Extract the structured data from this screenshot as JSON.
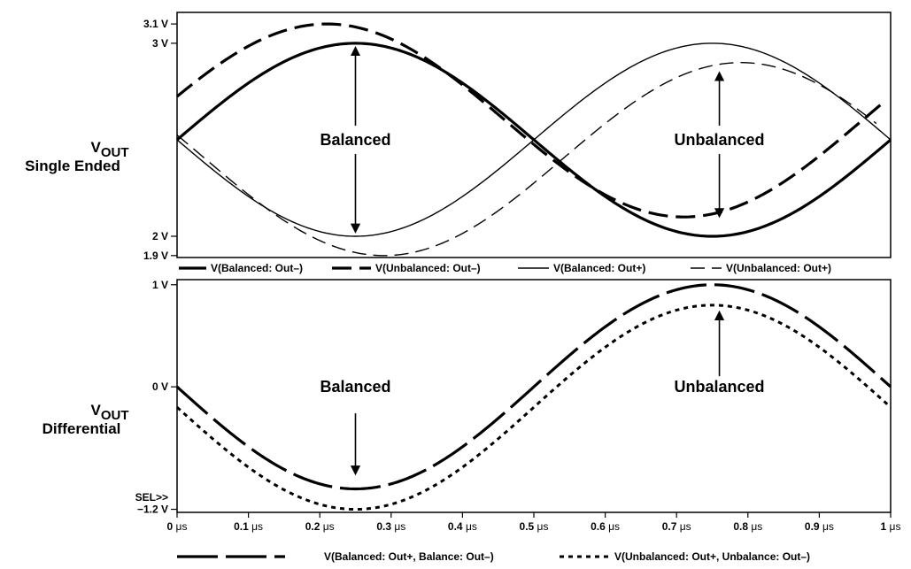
{
  "chart_data": [
    {
      "type": "line",
      "side_label_main": "V",
      "side_label_sub": "OUT",
      "side_label_line2": "Single Ended",
      "y_ticks": [
        {
          "label": "3.1 V",
          "value": 3.1
        },
        {
          "label": "3 V",
          "value": 3.0
        },
        {
          "label": "2 V",
          "value": 2.0
        },
        {
          "label": "1.9 V",
          "value": 1.9
        }
      ],
      "ylim": [
        1.89,
        3.16
      ],
      "xlim": [
        0,
        1
      ],
      "period_us": 1.0,
      "series": [
        {
          "name": "V(Balanced: Out–)",
          "style": "thick-solid",
          "offset": 2.5,
          "amplitude": 0.5,
          "phase_us": 0.0,
          "x_end": 1.0
        },
        {
          "name": "V(Unbalanced: Out–)",
          "style": "thick-dash",
          "offset": 2.6,
          "amplitude": 0.5,
          "phase_us": -0.04,
          "x_end": 0.99
        },
        {
          "name": "V(Balanced: Out+)",
          "style": "thin-solid",
          "offset": 2.5,
          "amplitude": -0.5,
          "phase_us": 0.0,
          "x_end": 1.0
        },
        {
          "name": "V(Unbalanced: Out+)",
          "style": "thin-dash",
          "offset": 2.4,
          "amplitude": -0.5,
          "phase_us": 0.04,
          "x_end": 0.98
        }
      ],
      "annotations": [
        {
          "text": "Balanced",
          "x": 0.25,
          "y": 2.5,
          "arrow_top": 2.96,
          "arrow_bottom": 2.04
        },
        {
          "text": "Unbalanced",
          "x": 0.76,
          "y": 2.5,
          "arrow_top": 2.83,
          "arrow_bottom": 2.12
        }
      ]
    },
    {
      "type": "line",
      "side_label_main": "V",
      "side_label_sub": "OUT",
      "side_label_line2": "Differential",
      "y_ticks": [
        {
          "label": "1 V",
          "value": 1.0
        },
        {
          "label": "0 V",
          "value": 0.0
        },
        {
          "label": "−1.2 V",
          "value": -1.2
        }
      ],
      "sel_label": "SEL>>",
      "ylim": [
        -1.23,
        1.05
      ],
      "xlim": [
        0,
        1
      ],
      "x_ticks": [
        {
          "num": "0",
          "unit": "μs",
          "value": 0.0
        },
        {
          "num": "0.1",
          "unit": "μs",
          "value": 0.1
        },
        {
          "num": "0.2",
          "unit": "μs",
          "value": 0.2
        },
        {
          "num": "0.3",
          "unit": "μs",
          "value": 0.3
        },
        {
          "num": "0.4",
          "unit": "μs",
          "value": 0.4
        },
        {
          "num": "0.5",
          "unit": "μs",
          "value": 0.5
        },
        {
          "num": "0.6",
          "unit": "μs",
          "value": 0.6
        },
        {
          "num": "0.7",
          "unit": "μs",
          "value": 0.7
        },
        {
          "num": "0.8",
          "unit": "μs",
          "value": 0.8
        },
        {
          "num": "0.9",
          "unit": "μs",
          "value": 0.9
        },
        {
          "num": "1",
          "unit": "μs",
          "value": 1.0
        }
      ],
      "period_us": 1.0,
      "series": [
        {
          "name": "V(Balanced: Out+, Balance: Out–)",
          "style": "thick-longdash",
          "offset": 0.0,
          "amplitude": -1.0,
          "phase_us": 0.0,
          "x_end": 1.0
        },
        {
          "name": "V(Unbalanced: Out+, Unbalance: Out–)",
          "style": "thick-dotted",
          "offset": -0.2,
          "amplitude": -1.0,
          "phase_us": 0.0,
          "x_end": 1.0
        }
      ],
      "annotations": [
        {
          "text": "Balanced",
          "x": 0.25,
          "y": 0.0,
          "arrow_top": -0.1,
          "arrow_bottom": -0.82
        },
        {
          "text": "Unbalanced",
          "x": 0.76,
          "y": 0.0,
          "arrow_top": 0.7,
          "arrow_bottom": 0.0
        }
      ]
    }
  ]
}
